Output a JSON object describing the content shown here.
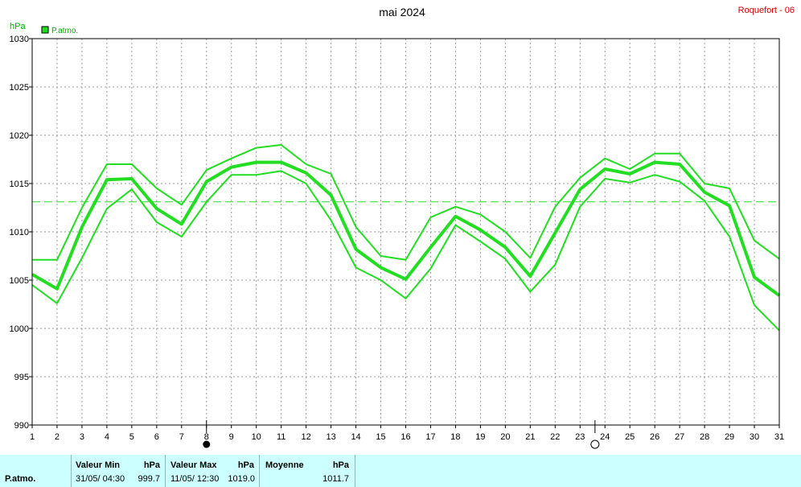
{
  "title": "mai 2024",
  "station": "Roquefort - 06",
  "legend": {
    "label": "P.atmo.",
    "color": "#22dd22"
  },
  "chart_data": {
    "type": "line",
    "title": "mai 2024",
    "ylabel": "hPa",
    "ylim": [
      990,
      1030
    ],
    "yticks": [
      990,
      995,
      1000,
      1005,
      1010,
      1015,
      1020,
      1025,
      1030
    ],
    "x": [
      1,
      2,
      3,
      4,
      5,
      6,
      7,
      8,
      9,
      10,
      11,
      12,
      13,
      14,
      15,
      16,
      17,
      18,
      19,
      20,
      21,
      22,
      23,
      24,
      25,
      26,
      27,
      28,
      29,
      30,
      31
    ],
    "grid": true,
    "mean_line": 1013.1,
    "moon_markers": [
      {
        "type": "new-moon",
        "x": 8
      },
      {
        "type": "full-moon",
        "x": 23.6
      }
    ],
    "series": [
      {
        "values": [
          1007.1,
          1007.1,
          1012.5,
          1017.0,
          1017.0,
          1014.5,
          1012.8,
          1016.4,
          1017.6,
          1018.7,
          1019.0,
          1017.0,
          1016.0,
          1010.5,
          1007.5,
          1007.1,
          1011.5,
          1012.6,
          1011.8,
          1010.0,
          1007.3,
          1012.6,
          1015.6,
          1017.6,
          1016.5,
          1018.1,
          1018.1,
          1015.0,
          1014.5,
          1009.1,
          1007.2
        ],
        "width": 2
      },
      {
        "values": [
          1005.6,
          1004.1,
          1010.5,
          1015.4,
          1015.5,
          1012.4,
          1010.8,
          1015.2,
          1016.7,
          1017.2,
          1017.2,
          1016.1,
          1013.8,
          1008.2,
          1006.3,
          1005.1,
          1008.4,
          1011.6,
          1010.2,
          1008.4,
          1005.4,
          1009.9,
          1014.4,
          1016.5,
          1016.0,
          1017.2,
          1017.0,
          1014.1,
          1012.7,
          1005.3,
          1003.4
        ],
        "width": 4
      },
      {
        "values": [
          1004.5,
          1002.6,
          1007.3,
          1012.4,
          1014.4,
          1011.0,
          1009.5,
          1013.1,
          1015.9,
          1015.9,
          1016.3,
          1015.0,
          1011.2,
          1006.3,
          1005.0,
          1003.1,
          1006.2,
          1010.7,
          1009.0,
          1007.2,
          1003.8,
          1006.6,
          1012.6,
          1015.5,
          1015.1,
          1015.9,
          1015.2,
          1013.2,
          1009.5,
          1002.4,
          999.8
        ],
        "width": 2
      }
    ]
  },
  "stats": {
    "row_label": "P.atmo.",
    "min": {
      "header": "Valeur Min",
      "unit": "hPa",
      "date": "31/05/  04:30",
      "value": "999.7"
    },
    "max": {
      "header": "Valeur Max",
      "unit": "hPa",
      "date": "11/05/  12:30",
      "value": "1019.0"
    },
    "mean": {
      "header": "Moyenne",
      "unit": "hPa",
      "value": "1011.7"
    }
  }
}
